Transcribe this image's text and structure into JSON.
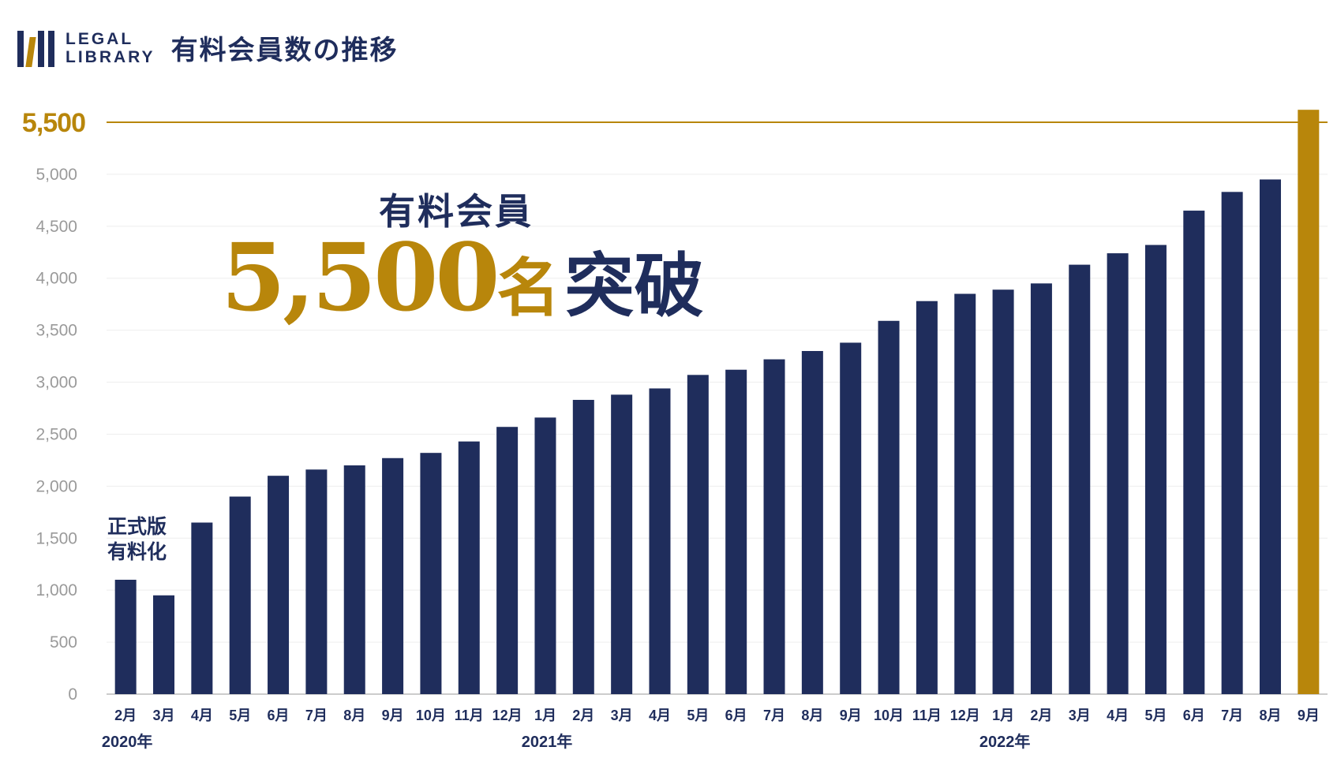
{
  "brand": {
    "line1": "LEGAL",
    "line2": "LIBRARY"
  },
  "page_title": "有料会員数の推移",
  "headline": {
    "sub": "有料会員",
    "number": "5,500",
    "unit": "名",
    "tail": "突破"
  },
  "annotation": {
    "line1": "正式版",
    "line2": "有料化"
  },
  "colors": {
    "navy": "#1f2d5c",
    "gold": "#b8860b",
    "grid": "#eeeeee",
    "tick": "#9a9a9a",
    "axis": "#cccccc"
  },
  "chart_data": {
    "type": "bar",
    "title": "有料会員数の推移",
    "xlabel": "",
    "ylabel": "",
    "ylim": [
      0,
      5500
    ],
    "yticks": [
      "0",
      "500",
      "1,000",
      "1,500",
      "2,000",
      "2,500",
      "3,000",
      "3,500",
      "4,000",
      "4,500",
      "5,000"
    ],
    "reference_line": {
      "value": 5500,
      "label": "5,500"
    },
    "categories": [
      "2月",
      "3月",
      "4月",
      "5月",
      "6月",
      "7月",
      "8月",
      "9月",
      "10月",
      "11月",
      "12月",
      "1月",
      "2月",
      "3月",
      "4月",
      "5月",
      "6月",
      "7月",
      "8月",
      "9月",
      "10月",
      "11月",
      "12月",
      "1月",
      "2月",
      "3月",
      "4月",
      "5月",
      "6月",
      "7月",
      "8月",
      "9月"
    ],
    "values": [
      1100,
      950,
      1650,
      1900,
      2100,
      2160,
      2200,
      2270,
      2320,
      2430,
      2570,
      2660,
      2830,
      2880,
      2940,
      3070,
      3120,
      3220,
      3300,
      3380,
      3590,
      3780,
      3850,
      3890,
      3950,
      4130,
      4240,
      4320,
      4650,
      4830,
      4950,
      5620
    ],
    "highlight_index": 31,
    "year_groups": [
      {
        "label": "2020年",
        "anchor_index": 0
      },
      {
        "label": "2021年",
        "anchor_index": 11
      },
      {
        "label": "2022年",
        "anchor_index": 23
      }
    ]
  }
}
